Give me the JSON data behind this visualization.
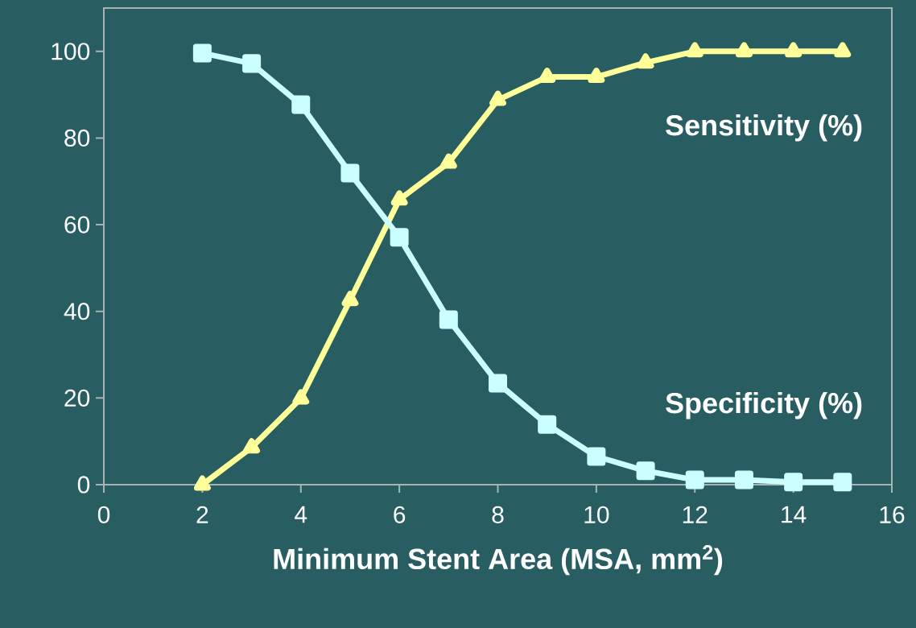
{
  "chart_data": {
    "type": "line",
    "xlabel": "Minimum Stent Area (MSA, mm$^{2}$)",
    "x": [
      2,
      3,
      4,
      5,
      6,
      7,
      8,
      9,
      10,
      11,
      12,
      13,
      14,
      15
    ],
    "series": [
      {
        "name": "Sensitivity (%)",
        "color": "#ffff99",
        "marker": "triangle",
        "values": [
          0,
          8.6,
          19.9,
          42.6,
          65.8,
          74.3,
          88.8,
          94.1,
          94.1,
          97.4,
          100,
          100,
          100,
          100
        ]
      },
      {
        "name": "Specificity (%)",
        "color": "#ccffff",
        "marker": "square",
        "values": [
          99.6,
          97.2,
          87.7,
          71.9,
          57.1,
          38.1,
          23.4,
          13.9,
          6.5,
          3.2,
          1.1,
          1.1,
          0.6,
          0.6
        ]
      }
    ],
    "xlim": [
      0,
      16
    ],
    "xticks": [
      0,
      2,
      4,
      6,
      8,
      10,
      12,
      14,
      16
    ],
    "ylim": [
      0,
      110
    ],
    "yticks": [
      0,
      20,
      40,
      60,
      80,
      100
    ],
    "grid": false,
    "line_style": "solid"
  }
}
